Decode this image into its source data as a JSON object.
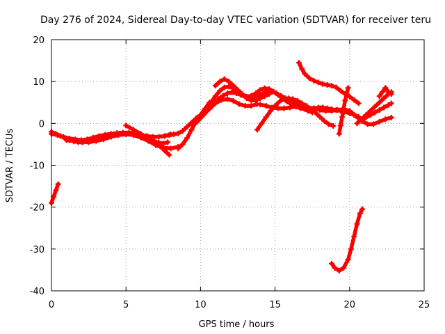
{
  "chart_data": {
    "type": "scatter",
    "title": "Day 276 of 2024, Sidereal Day-to-day VTEC variation (SDTVAR) for receiver teru",
    "xlabel": "GPS time / hours",
    "ylabel": "SDTVAR / TECUs",
    "xlim": [
      0,
      25
    ],
    "ylim": [
      -40,
      20
    ],
    "xticks": [
      0,
      5,
      10,
      15,
      20,
      25
    ],
    "yticks": [
      -40,
      -30,
      -20,
      -10,
      0,
      10,
      20
    ],
    "grid": true,
    "marker": "plus",
    "color": "#ff0000",
    "series": [
      {
        "name": "s1",
        "x": [
          0.0,
          0.3,
          0.6,
          0.9,
          1.2,
          1.5,
          1.8,
          2.1,
          2.4,
          2.7,
          3.0,
          3.3,
          3.6,
          3.9,
          4.2,
          4.5,
          4.8,
          5.1,
          5.4,
          5.7,
          6.0,
          6.3,
          6.6,
          6.9,
          7.2,
          7.5,
          7.8
        ],
        "y": [
          -2,
          -2.5,
          -3,
          -3.5,
          -4,
          -4.3,
          -4.5,
          -4.5,
          -4.3,
          -4,
          -3.6,
          -3.2,
          -3,
          -2.8,
          -2.6,
          -2.5,
          -2.4,
          -2.4,
          -2.5,
          -2.8,
          -3.2,
          -3.6,
          -4,
          -4.3,
          -4.6,
          -4.8,
          -4.5
        ]
      },
      {
        "name": "s2",
        "x": [
          0.0,
          0.4,
          0.8,
          1.2,
          1.6,
          2.0,
          2.4,
          2.8,
          3.2,
          3.6,
          4.0,
          4.4,
          4.8,
          5.2,
          5.6,
          6.0,
          6.4,
          6.8,
          7.2,
          7.6,
          8.0
        ],
        "y": [
          -2.5,
          -2.8,
          -3.2,
          -3.6,
          -3.8,
          -4,
          -3.8,
          -3.4,
          -3,
          -2.7,
          -2.5,
          -2.3,
          -2.2,
          -2.2,
          -2.4,
          -2.7,
          -3,
          -3.2,
          -3.2,
          -3,
          -2.6
        ]
      },
      {
        "name": "s3",
        "x": [
          5.0,
          5.5,
          6.0,
          6.5,
          7.0,
          7.3,
          7.6,
          7.9
        ],
        "y": [
          -0.5,
          -1.5,
          -2.5,
          -3.5,
          -4.5,
          -5.5,
          -6.5,
          -7.5
        ]
      },
      {
        "name": "s4",
        "x": [
          1.0,
          1.5,
          2.0,
          2.5,
          3.0,
          3.5,
          4.0,
          4.5,
          5.0,
          5.5,
          6.0,
          6.5,
          7.0,
          7.5,
          8.0,
          8.5
        ],
        "y": [
          -4,
          -4.2,
          -4.4,
          -4.5,
          -4.2,
          -3.8,
          -3.2,
          -2.8,
          -2.6,
          -2.8,
          -3.4,
          -4.2,
          -5.2,
          -5.8,
          -6.0,
          -5.6
        ]
      },
      {
        "name": "s5",
        "x": [
          7.6,
          7.9,
          8.2,
          8.5,
          8.8,
          9.1,
          9.4,
          9.7,
          10.0,
          10.3,
          10.6,
          10.9,
          11.2,
          11.5,
          11.8,
          12.1,
          12.4,
          12.7,
          13.0,
          13.3,
          13.6,
          13.9,
          14.2,
          14.5,
          14.8,
          15.1,
          15.4,
          15.7,
          16.0,
          16.3,
          16.6,
          16.9,
          17.2,
          17.5
        ],
        "y": [
          -3,
          -2.8,
          -2.6,
          -2.4,
          -1.8,
          -0.8,
          0.2,
          1.2,
          2,
          2.8,
          3.8,
          4.8,
          5.8,
          6.6,
          7.2,
          7.4,
          7.2,
          6.8,
          6.4,
          6.2,
          6.2,
          6.6,
          7.2,
          7.6,
          7.6,
          7.2,
          6.6,
          6,
          5.4,
          4.8,
          4.2,
          3.6,
          3,
          2.6
        ]
      },
      {
        "name": "s6",
        "x": [
          8.5,
          8.8,
          9.1,
          9.4,
          9.7,
          10.0,
          10.3,
          10.6
        ],
        "y": [
          -6,
          -5,
          -3.5,
          -1.5,
          0.5,
          2,
          3.5,
          5
        ]
      },
      {
        "name": "s7",
        "x": [
          9.5,
          9.8,
          10.1,
          10.4,
          10.7,
          11.0,
          11.3,
          11.6,
          11.9,
          12.2,
          12.5,
          12.8,
          13.1,
          13.4,
          13.7,
          14.0,
          14.3,
          14.6,
          14.9,
          15.2,
          15.5,
          15.8,
          16.1,
          16.4,
          16.7,
          17.0,
          17.3,
          17.6,
          17.9,
          18.2,
          18.5,
          18.8,
          19.1,
          19.4,
          19.7,
          20.0,
          20.3,
          20.6
        ],
        "y": [
          -0.5,
          0.5,
          2,
          3.5,
          5,
          6.5,
          7.8,
          8.6,
          8.8,
          8.4,
          7.6,
          6.8,
          6.4,
          6.6,
          7.2,
          8,
          8.4,
          8.2,
          7.6,
          6.8,
          6,
          5.2,
          4.6,
          4,
          3.6,
          3.4,
          3.4,
          3.6,
          3.8,
          3.8,
          3.6,
          3.4,
          3.2,
          3,
          2.8,
          2.4,
          2,
          1.6
        ]
      },
      {
        "name": "s8",
        "x": [
          11.0,
          11.3,
          11.6,
          11.9,
          12.2,
          12.5,
          12.8,
          13.1,
          13.4,
          13.7,
          14.0,
          14.3,
          14.6
        ],
        "y": [
          9,
          10,
          10.6,
          10,
          9,
          8,
          7,
          6,
          5.5,
          5.5,
          6,
          6.5,
          7
        ]
      },
      {
        "name": "s9",
        "x": [
          9.8,
          10.2,
          10.6,
          11.0,
          11.4,
          11.8,
          12.2,
          12.6,
          13.0,
          13.4,
          13.8
        ],
        "y": [
          0.5,
          2,
          3.5,
          4.8,
          5.6,
          5.8,
          5.4,
          4.6,
          4.2,
          4.2,
          4.6
        ]
      },
      {
        "name": "s10",
        "x": [
          13.8,
          14.1,
          14.4,
          14.7,
          15.0,
          15.3,
          15.6,
          15.9,
          16.2,
          16.5,
          16.8,
          17.1,
          17.4,
          17.7,
          18.0,
          18.3,
          18.6,
          18.9
        ],
        "y": [
          -1.5,
          0,
          1.5,
          3,
          4.2,
          5.2,
          5.8,
          6,
          5.8,
          5.4,
          4.8,
          4.2,
          3.4,
          2.6,
          1.6,
          0.6,
          -0.2,
          -0.6
        ]
      },
      {
        "name": "s11",
        "x": [
          14.0,
          14.4,
          14.8,
          15.2,
          15.6,
          16.0,
          16.4,
          16.8,
          17.2,
          17.6,
          18.0,
          18.4,
          18.8,
          19.2,
          19.6,
          20.0,
          20.4,
          20.8,
          21.2,
          21.6,
          22.0,
          22.4,
          22.8
        ],
        "y": [
          4.5,
          4.2,
          3.8,
          3.6,
          3.6,
          3.8,
          4,
          4,
          3.8,
          3.6,
          3.2,
          3,
          3,
          3.2,
          3.4,
          3,
          1.8,
          0.6,
          -0.2,
          -0.2,
          0.4,
          1,
          1.4
        ]
      },
      {
        "name": "s12",
        "x": [
          16.6,
          16.8,
          17.0,
          17.3,
          17.6,
          17.9,
          18.2,
          18.5,
          18.8,
          19.1,
          19.4,
          19.7,
          20.0,
          20.3,
          20.6
        ],
        "y": [
          14.5,
          13,
          11.8,
          10.8,
          10.2,
          9.8,
          9.4,
          9.2,
          9,
          8.6,
          7.8,
          7,
          6.4,
          5.6,
          4.8
        ]
      },
      {
        "name": "s13",
        "x": [
          19.3,
          19.4,
          19.5,
          19.6,
          19.7,
          19.8,
          19.9
        ],
        "y": [
          -2.5,
          -0.5,
          1.5,
          3.5,
          5.5,
          7,
          8.5
        ]
      },
      {
        "name": "s14",
        "x": [
          20.5,
          20.8,
          21.1,
          21.4,
          21.7,
          22.0,
          22.3,
          22.6,
          22.8
        ],
        "y": [
          0,
          1,
          2,
          3,
          4,
          5,
          6,
          7,
          7.5
        ]
      },
      {
        "name": "s15",
        "x": [
          20.8,
          21.1,
          21.4,
          21.7,
          22.0,
          22.3,
          22.6,
          22.8
        ],
        "y": [
          0.8,
          1.4,
          2,
          2.6,
          3.2,
          3.8,
          4.4,
          4.8
        ]
      },
      {
        "name": "s16",
        "x": [
          22.0,
          22.2,
          22.4,
          22.6,
          22.8
        ],
        "y": [
          6.5,
          7.5,
          8.5,
          7.5,
          7
        ]
      },
      {
        "name": "s17",
        "x": [
          0.0,
          0.15,
          0.3,
          0.45
        ],
        "y": [
          -19,
          -17.5,
          -16,
          -14.5
        ]
      },
      {
        "name": "s18",
        "x": [
          18.8,
          19.0,
          19.3,
          19.6,
          19.9,
          20.1,
          20.3,
          20.5,
          20.7,
          20.85
        ],
        "y": [
          -33.5,
          -34.5,
          -35.2,
          -34.5,
          -32.5,
          -30,
          -27,
          -24,
          -21.5,
          -20.5
        ]
      }
    ]
  }
}
